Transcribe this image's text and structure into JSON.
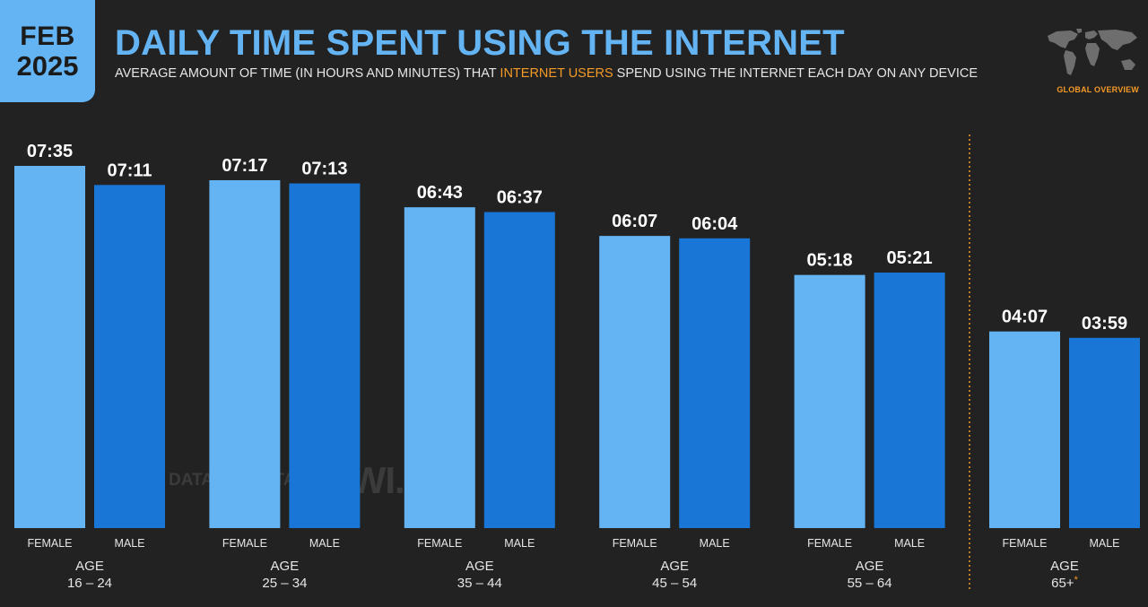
{
  "header": {
    "date_month": "FEB",
    "date_year": "2025",
    "title": "DAILY TIME SPENT USING THE INTERNET",
    "subtitle_before": "AVERAGE AMOUNT OF TIME (IN HOURS AND MINUTES) THAT ",
    "subtitle_highlight": "INTERNET USERS",
    "subtitle_after": " SPEND USING THE INTERNET EACH DAY ON ANY DEVICE",
    "overview_label": "GLOBAL OVERVIEW"
  },
  "watermark": {
    "datareportal": "DATAREPORTAL",
    "gwi": "GWI."
  },
  "colors": {
    "background": "#222222",
    "female": "#64B4F4",
    "male": "#1976D6",
    "accent": "#F39A27",
    "title": "#64B4F4"
  },
  "chart_data": {
    "type": "bar",
    "unit": "hours:minutes",
    "group_prefix": "AGE",
    "categories": [
      "16 – 24",
      "25 – 34",
      "35 – 44",
      "45 – 54",
      "55 – 64",
      "65+"
    ],
    "footnote_marker": "*",
    "series": [
      {
        "name": "FEMALE",
        "values": [
          455,
          437,
          403,
          367,
          318,
          247
        ],
        "labels": [
          "07:35",
          "07:17",
          "06:43",
          "06:07",
          "05:18",
          "04:07"
        ]
      },
      {
        "name": "MALE",
        "values": [
          431,
          433,
          397,
          364,
          321,
          239
        ],
        "labels": [
          "07:11",
          "07:13",
          "06:37",
          "06:04",
          "05:21",
          "03:59"
        ]
      }
    ],
    "ylim": [
      0,
      455
    ],
    "grid": false,
    "separator_before_group": 5
  }
}
